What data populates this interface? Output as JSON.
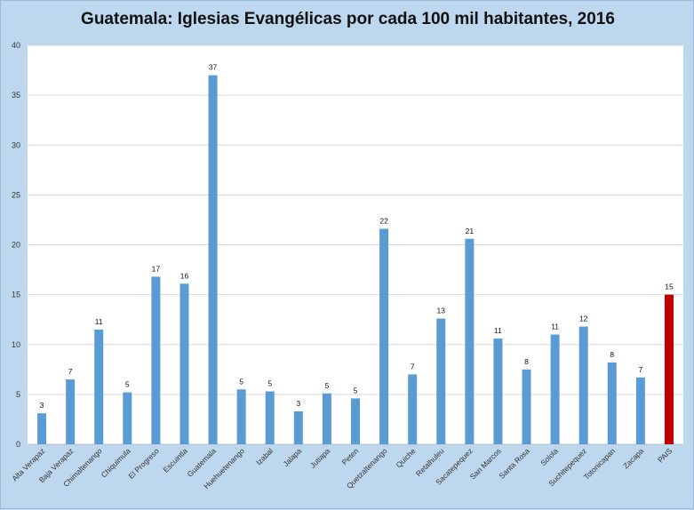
{
  "chart_data": {
    "type": "bar",
    "title": "Guatemala: Iglesias Evangélicas por cada 100 mil habitantes, 2016",
    "xlabel": "",
    "ylabel": "",
    "ylim": [
      0,
      40
    ],
    "yticks": [
      0,
      5,
      10,
      15,
      20,
      25,
      30,
      35,
      40
    ],
    "grid": true,
    "bar_color": "#5b9bd5",
    "highlight_color": "#c00000",
    "highlight_category": "PAIS",
    "categories": [
      "Alta Verapaz",
      "Baja Verapaz",
      "Chimaltenango",
      "Chiquimula",
      "El Progreso",
      "Escuintla",
      "Guatemala",
      "Huehuetenango",
      "Izabal",
      "Jalapa",
      "Jutiapa",
      "Peten",
      "Quetzaltenango",
      "Quiche",
      "Retalhuleu",
      "Sacatepequez",
      "San Marcos",
      "Santa Rosa",
      "Solola",
      "Suchitepequez",
      "Totonicapan",
      "Zacapa",
      "PAIS"
    ],
    "values": [
      3.1,
      6.5,
      11.5,
      5.2,
      16.8,
      16.1,
      37.0,
      5.5,
      5.3,
      3.3,
      5.1,
      4.6,
      21.6,
      7.0,
      12.6,
      20.6,
      10.6,
      7.5,
      11.0,
      11.8,
      8.2,
      6.7,
      15.0
    ],
    "data_labels": [
      "3",
      "7",
      "11",
      "5",
      "17",
      "16",
      "37",
      "5",
      "5",
      "3",
      "5",
      "5",
      "22",
      "7",
      "13",
      "21",
      "11",
      "8",
      "11",
      "12",
      "8",
      "7",
      "15"
    ]
  }
}
